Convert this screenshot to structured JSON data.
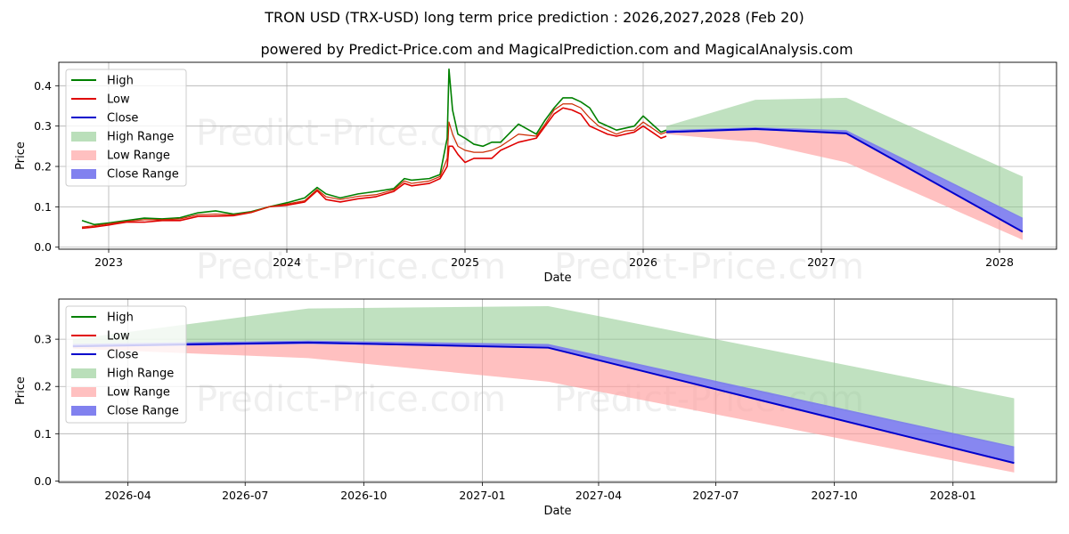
{
  "title": "TRON USD (TRX-USD) long term price prediction : 2026,2027,2028 (Feb 20)",
  "subtitle": "powered by Predict-Price.com and MagicalPrediction.com and MagicalAnalysis.com",
  "watermark": "Predict-Price.com",
  "colors": {
    "high": "#008000",
    "low": "#e00000",
    "close": "#0000cc",
    "high_range": "#8cc98c",
    "low_range": "#ff9e9e",
    "close_range": "#7a7aee"
  },
  "chart_data": [
    {
      "type": "line",
      "name": "overview",
      "xlabel": "Date",
      "ylabel": "Price",
      "xlim": [
        2022.72,
        2028.32
      ],
      "ylim": [
        -0.005,
        0.458
      ],
      "xticks": [
        2023,
        2024,
        2025,
        2026,
        2027,
        2028
      ],
      "xtick_labels": [
        "2023",
        "2024",
        "2025",
        "2026",
        "2027",
        "2028"
      ],
      "yticks": [
        0.0,
        0.1,
        0.2,
        0.3,
        0.4
      ],
      "ytick_labels": [
        "0.0",
        "0.1",
        "0.2",
        "0.3",
        "0.4"
      ],
      "grid": true,
      "legend": {
        "placement": "top-left",
        "entries": [
          "High",
          "Low",
          "Close",
          "High Range",
          "Low Range",
          "Close Range"
        ]
      },
      "history": {
        "x": [
          2022.85,
          2022.92,
          2023.0,
          2023.1,
          2023.2,
          2023.3,
          2023.4,
          2023.5,
          2023.6,
          2023.7,
          2023.8,
          2023.9,
          2024.0,
          2024.1,
          2024.17,
          2024.22,
          2024.3,
          2024.4,
          2024.5,
          2024.6,
          2024.66,
          2024.7,
          2024.8,
          2024.86,
          2024.9,
          2024.91,
          2024.93,
          2024.96,
          2025.0,
          2025.05,
          2025.1,
          2025.15,
          2025.2,
          2025.3,
          2025.4,
          2025.45,
          2025.5,
          2025.55,
          2025.6,
          2025.65,
          2025.7,
          2025.75,
          2025.8,
          2025.85,
          2025.9,
          2025.95,
          2026.0,
          2026.05,
          2026.1,
          2026.13
        ],
        "high": [
          0.066,
          0.056,
          0.06,
          0.066,
          0.072,
          0.07,
          0.073,
          0.085,
          0.09,
          0.082,
          0.088,
          0.1,
          0.11,
          0.122,
          0.148,
          0.132,
          0.122,
          0.132,
          0.138,
          0.145,
          0.17,
          0.166,
          0.17,
          0.18,
          0.27,
          0.441,
          0.34,
          0.28,
          0.27,
          0.255,
          0.25,
          0.26,
          0.26,
          0.305,
          0.28,
          0.315,
          0.345,
          0.37,
          0.37,
          0.36,
          0.345,
          0.31,
          0.3,
          0.29,
          0.295,
          0.3,
          0.325,
          0.305,
          0.285,
          0.29
        ],
        "low": [
          0.047,
          0.05,
          0.055,
          0.062,
          0.062,
          0.066,
          0.066,
          0.076,
          0.077,
          0.078,
          0.086,
          0.1,
          0.104,
          0.112,
          0.14,
          0.118,
          0.112,
          0.12,
          0.125,
          0.138,
          0.158,
          0.152,
          0.158,
          0.17,
          0.2,
          0.25,
          0.25,
          0.23,
          0.21,
          0.22,
          0.22,
          0.22,
          0.24,
          0.26,
          0.27,
          0.3,
          0.33,
          0.345,
          0.34,
          0.33,
          0.3,
          0.29,
          0.28,
          0.275,
          0.28,
          0.285,
          0.3,
          0.285,
          0.27,
          0.275
        ],
        "close": [
          0.05,
          0.053,
          0.058,
          0.064,
          0.068,
          0.068,
          0.07,
          0.08,
          0.082,
          0.08,
          0.087,
          0.1,
          0.107,
          0.115,
          0.143,
          0.125,
          0.118,
          0.126,
          0.13,
          0.142,
          0.164,
          0.158,
          0.164,
          0.175,
          0.22,
          0.31,
          0.28,
          0.25,
          0.24,
          0.235,
          0.235,
          0.24,
          0.25,
          0.28,
          0.275,
          0.305,
          0.34,
          0.355,
          0.355,
          0.345,
          0.32,
          0.3,
          0.29,
          0.28,
          0.288,
          0.29,
          0.31,
          0.295,
          0.28,
          0.285
        ]
      },
      "forecast": {
        "x": [
          2026.13,
          2026.63,
          2027.14,
          2028.13
        ],
        "close": [
          0.285,
          0.293,
          0.282,
          0.038
        ],
        "high_range": [
          [
            0.29,
            0.3
          ],
          [
            0.29,
            0.365
          ],
          [
            0.285,
            0.37
          ],
          [
            0.07,
            0.175
          ]
        ],
        "low_range": [
          [
            0.28,
            0.29
          ],
          [
            0.26,
            0.29
          ],
          [
            0.21,
            0.282
          ],
          [
            0.018,
            0.038
          ]
        ],
        "close_range": [
          [
            0.283,
            0.29
          ],
          [
            0.29,
            0.297
          ],
          [
            0.282,
            0.29
          ],
          [
            0.038,
            0.073
          ]
        ]
      }
    },
    {
      "type": "line",
      "name": "forecast-detail",
      "xlabel": "Date",
      "ylabel": "Price",
      "xlim": [
        2026.1,
        2028.22
      ],
      "ylim": [
        -0.003,
        0.385
      ],
      "xticks": [
        2026.247,
        2026.496,
        2026.748,
        2027.0,
        2027.247,
        2027.496,
        2027.748,
        2028.0
      ],
      "xtick_labels": [
        "2026-04",
        "2026-07",
        "2026-10",
        "2027-01",
        "2027-04",
        "2027-07",
        "2027-10",
        "2028-01"
      ],
      "yticks": [
        0.0,
        0.1,
        0.2,
        0.3
      ],
      "ytick_labels": [
        "0.0",
        "0.1",
        "0.2",
        "0.3"
      ],
      "grid": true,
      "legend": {
        "placement": "top-left",
        "entries": [
          "High",
          "Low",
          "Close",
          "High Range",
          "Low Range",
          "Close Range"
        ]
      },
      "forecast": {
        "x": [
          2026.13,
          2026.63,
          2027.14,
          2028.13
        ],
        "close": [
          0.285,
          0.293,
          0.282,
          0.038
        ],
        "high_range": [
          [
            0.29,
            0.3
          ],
          [
            0.29,
            0.365
          ],
          [
            0.285,
            0.37
          ],
          [
            0.07,
            0.175
          ]
        ],
        "low_range": [
          [
            0.28,
            0.29
          ],
          [
            0.26,
            0.29
          ],
          [
            0.21,
            0.282
          ],
          [
            0.018,
            0.038
          ]
        ],
        "close_range": [
          [
            0.283,
            0.29
          ],
          [
            0.29,
            0.297
          ],
          [
            0.282,
            0.29
          ],
          [
            0.038,
            0.073
          ]
        ]
      }
    }
  ]
}
